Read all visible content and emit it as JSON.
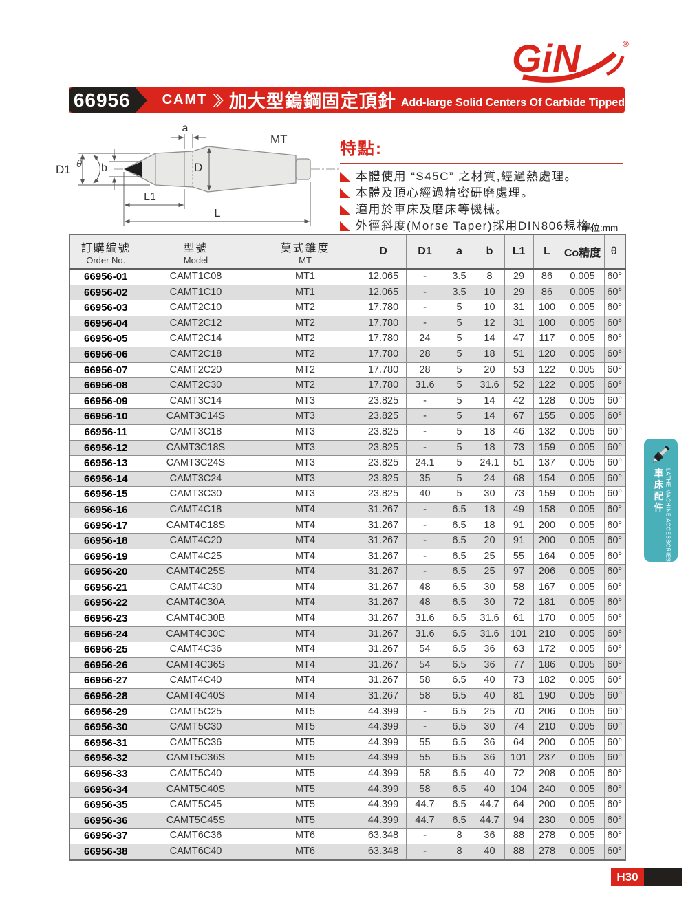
{
  "logo": {
    "text": "GiN",
    "reg": "®"
  },
  "header": {
    "code": "66956",
    "series": "CAMT",
    "title_zh": "加大型鎢鋼固定頂針",
    "title_en": "Add-large Solid Centers Of Carbide Tipped"
  },
  "features": {
    "heading": "特點:",
    "items": [
      "本體使用 “S45C” 之材質,經過熱處理。",
      "本體及頂心經過精密研磨處理。",
      "適用於車床及磨床等機械。",
      "外徑斜度(Morse Taper)採用DIN806規格。"
    ],
    "unit": "單位:mm"
  },
  "drawing": {
    "labels": {
      "d1": "D1",
      "theta": "θ",
      "b": "b",
      "a": "a",
      "d": "D",
      "mt": "MT",
      "l1": "L1",
      "l": "L"
    }
  },
  "table": {
    "headers": [
      {
        "zh": "訂購編號",
        "en": "Order No."
      },
      {
        "zh": "型號",
        "en": "Model"
      },
      {
        "zh": "莫式錐度",
        "en": "MT"
      },
      "D",
      "D1",
      "a",
      "b",
      "L1",
      "L",
      "Co精度",
      "θ"
    ],
    "rows": [
      [
        "66956-01",
        "CAMT1C08",
        "MT1",
        "12.065",
        "-",
        "3.5",
        "8",
        "29",
        "86",
        "0.005",
        "60°"
      ],
      [
        "66956-02",
        "CAMT1C10",
        "MT1",
        "12.065",
        "-",
        "3.5",
        "10",
        "29",
        "86",
        "0.005",
        "60°"
      ],
      [
        "66956-03",
        "CAMT2C10",
        "MT2",
        "17.780",
        "-",
        "5",
        "10",
        "31",
        "100",
        "0.005",
        "60°"
      ],
      [
        "66956-04",
        "CAMT2C12",
        "MT2",
        "17.780",
        "-",
        "5",
        "12",
        "31",
        "100",
        "0.005",
        "60°"
      ],
      [
        "66956-05",
        "CAMT2C14",
        "MT2",
        "17.780",
        "24",
        "5",
        "14",
        "47",
        "117",
        "0.005",
        "60°"
      ],
      [
        "66956-06",
        "CAMT2C18",
        "MT2",
        "17.780",
        "28",
        "5",
        "18",
        "51",
        "120",
        "0.005",
        "60°"
      ],
      [
        "66956-07",
        "CAMT2C20",
        "MT2",
        "17.780",
        "28",
        "5",
        "20",
        "53",
        "122",
        "0.005",
        "60°"
      ],
      [
        "66956-08",
        "CAMT2C30",
        "MT2",
        "17.780",
        "31.6",
        "5",
        "31.6",
        "52",
        "122",
        "0.005",
        "60°"
      ],
      [
        "66956-09",
        "CAMT3C14",
        "MT3",
        "23.825",
        "-",
        "5",
        "14",
        "42",
        "128",
        "0.005",
        "60°"
      ],
      [
        "66956-10",
        "CAMT3C14S",
        "MT3",
        "23.825",
        "-",
        "5",
        "14",
        "67",
        "155",
        "0.005",
        "60°"
      ],
      [
        "66956-11",
        "CAMT3C18",
        "MT3",
        "23.825",
        "-",
        "5",
        "18",
        "46",
        "132",
        "0.005",
        "60°"
      ],
      [
        "66956-12",
        "CAMT3C18S",
        "MT3",
        "23.825",
        "-",
        "5",
        "18",
        "73",
        "159",
        "0.005",
        "60°"
      ],
      [
        "66956-13",
        "CAMT3C24S",
        "MT3",
        "23.825",
        "24.1",
        "5",
        "24.1",
        "51",
        "137",
        "0.005",
        "60°"
      ],
      [
        "66956-14",
        "CAMT3C24",
        "MT3",
        "23.825",
        "35",
        "5",
        "24",
        "68",
        "154",
        "0.005",
        "60°"
      ],
      [
        "66956-15",
        "CAMT3C30",
        "MT3",
        "23.825",
        "40",
        "5",
        "30",
        "73",
        "159",
        "0.005",
        "60°"
      ],
      [
        "66956-16",
        "CAMT4C18",
        "MT4",
        "31.267",
        "-",
        "6.5",
        "18",
        "49",
        "158",
        "0.005",
        "60°"
      ],
      [
        "66956-17",
        "CAMT4C18S",
        "MT4",
        "31.267",
        "-",
        "6.5",
        "18",
        "91",
        "200",
        "0.005",
        "60°"
      ],
      [
        "66956-18",
        "CAMT4C20",
        "MT4",
        "31.267",
        "-",
        "6.5",
        "20",
        "91",
        "200",
        "0.005",
        "60°"
      ],
      [
        "66956-19",
        "CAMT4C25",
        "MT4",
        "31.267",
        "-",
        "6.5",
        "25",
        "55",
        "164",
        "0.005",
        "60°"
      ],
      [
        "66956-20",
        "CAMT4C25S",
        "MT4",
        "31.267",
        "-",
        "6.5",
        "25",
        "97",
        "206",
        "0.005",
        "60°"
      ],
      [
        "66956-21",
        "CAMT4C30",
        "MT4",
        "31.267",
        "48",
        "6.5",
        "30",
        "58",
        "167",
        "0.005",
        "60°"
      ],
      [
        "66956-22",
        "CAMT4C30A",
        "MT4",
        "31.267",
        "48",
        "6.5",
        "30",
        "72",
        "181",
        "0.005",
        "60°"
      ],
      [
        "66956-23",
        "CAMT4C30B",
        "MT4",
        "31.267",
        "31.6",
        "6.5",
        "31.6",
        "61",
        "170",
        "0.005",
        "60°"
      ],
      [
        "66956-24",
        "CAMT4C30C",
        "MT4",
        "31.267",
        "31.6",
        "6.5",
        "31.6",
        "101",
        "210",
        "0.005",
        "60°"
      ],
      [
        "66956-25",
        "CAMT4C36",
        "MT4",
        "31.267",
        "54",
        "6.5",
        "36",
        "63",
        "172",
        "0.005",
        "60°"
      ],
      [
        "66956-26",
        "CAMT4C36S",
        "MT4",
        "31.267",
        "54",
        "6.5",
        "36",
        "77",
        "186",
        "0.005",
        "60°"
      ],
      [
        "66956-27",
        "CAMT4C40",
        "MT4",
        "31.267",
        "58",
        "6.5",
        "40",
        "73",
        "182",
        "0.005",
        "60°"
      ],
      [
        "66956-28",
        "CAMT4C40S",
        "MT4",
        "31.267",
        "58",
        "6.5",
        "40",
        "81",
        "190",
        "0.005",
        "60°"
      ],
      [
        "66956-29",
        "CAMT5C25",
        "MT5",
        "44.399",
        "-",
        "6.5",
        "25",
        "70",
        "206",
        "0.005",
        "60°"
      ],
      [
        "66956-30",
        "CAMT5C30",
        "MT5",
        "44.399",
        "-",
        "6.5",
        "30",
        "74",
        "210",
        "0.005",
        "60°"
      ],
      [
        "66956-31",
        "CAMT5C36",
        "MT5",
        "44.399",
        "55",
        "6.5",
        "36",
        "64",
        "200",
        "0.005",
        "60°"
      ],
      [
        "66956-32",
        "CAMT5C36S",
        "MT5",
        "44.399",
        "55",
        "6.5",
        "36",
        "101",
        "237",
        "0.005",
        "60°"
      ],
      [
        "66956-33",
        "CAMT5C40",
        "MT5",
        "44.399",
        "58",
        "6.5",
        "40",
        "72",
        "208",
        "0.005",
        "60°"
      ],
      [
        "66956-34",
        "CAMT5C40S",
        "MT5",
        "44.399",
        "58",
        "6.5",
        "40",
        "104",
        "240",
        "0.005",
        "60°"
      ],
      [
        "66956-35",
        "CAMT5C45",
        "MT5",
        "44.399",
        "44.7",
        "6.5",
        "44.7",
        "64",
        "200",
        "0.005",
        "60°"
      ],
      [
        "66956-36",
        "CAMT5C45S",
        "MT5",
        "44.399",
        "44.7",
        "6.5",
        "44.7",
        "94",
        "230",
        "0.005",
        "60°"
      ],
      [
        "66956-37",
        "CAMT6C36",
        "MT6",
        "63.348",
        "-",
        "8",
        "36",
        "88",
        "278",
        "0.005",
        "60°"
      ],
      [
        "66956-38",
        "CAMT6C40",
        "MT6",
        "63.348",
        "-",
        "8",
        "40",
        "88",
        "278",
        "0.005",
        "60°"
      ]
    ]
  },
  "side_tab": {
    "line_en": "LATHE MACHINE ACCESSORIES",
    "line_zh": "車床配件"
  },
  "page_number": "H30",
  "colors": {
    "accent_red": "#d9251c",
    "black": "#231f1c",
    "teal": "#49b0ba",
    "row_gray": "#dedede"
  }
}
